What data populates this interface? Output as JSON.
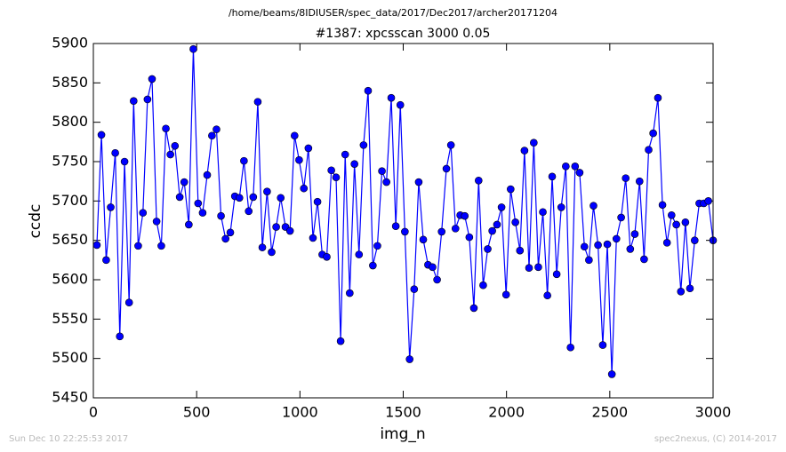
{
  "chart_data": {
    "type": "line",
    "suptitle": "/home/beams/8IDIUSER/spec_data/2017/Dec2017/archer20171204",
    "title": "#1387: xpcsscan 3000 0.05",
    "x_label": "img_n",
    "y_label": "ccdc",
    "footer_left": "Sun Dec 10 22:25:53 2017",
    "footer_right": "spec2nexus, (C) 2014-2017",
    "x": [
      17,
      39,
      62,
      84,
      106,
      128,
      151,
      173,
      195,
      217,
      240,
      262,
      284,
      306,
      329,
      351,
      373,
      395,
      418,
      440,
      462,
      484,
      507,
      529,
      551,
      574,
      596,
      618,
      640,
      663,
      685,
      707,
      729,
      752,
      774,
      796,
      818,
      841,
      863,
      885,
      907,
      930,
      952,
      974,
      996,
      1019,
      1041,
      1063,
      1085,
      1108,
      1130,
      1152,
      1175,
      1197,
      1219,
      1241,
      1264,
      1286,
      1308,
      1330,
      1353,
      1375,
      1397,
      1419,
      1442,
      1464,
      1486,
      1508,
      1531,
      1553,
      1575,
      1597,
      1620,
      1642,
      1664,
      1686,
      1709,
      1731,
      1753,
      1776,
      1798,
      1820,
      1842,
      1865,
      1887,
      1909,
      1931,
      1954,
      1976,
      1998,
      2020,
      2043,
      2065,
      2087,
      2109,
      2132,
      2154,
      2176,
      2198,
      2221,
      2243,
      2265,
      2287,
      2310,
      2332,
      2354,
      2377,
      2399,
      2421,
      2443,
      2466,
      2488,
      2510,
      2532,
      2555,
      2577,
      2599,
      2621,
      2644,
      2666,
      2688,
      2710,
      2733,
      2755,
      2777,
      2799,
      2822,
      2844,
      2866,
      2888,
      2911,
      2933,
      2955,
      2977,
      3000
    ],
    "series": [
      {
        "color": "#0000ff",
        "marker_color": "#0000ff",
        "values": [
          5644,
          5784,
          5625,
          5692,
          5761,
          5528,
          5750,
          5571,
          5827,
          5643,
          5685,
          5829,
          5855,
          5674,
          5643,
          5792,
          5759,
          5770,
          5705,
          5724,
          5670,
          5893,
          5697,
          5685,
          5733,
          5783,
          5791,
          5681,
          5652,
          5660,
          5706,
          5704,
          5751,
          5687,
          5705,
          5826,
          5641,
          5712,
          5635,
          5667,
          5704,
          5667,
          5662,
          5783,
          5752,
          5716,
          5767,
          5653,
          5699,
          5632,
          5629,
          5739,
          5730,
          5522,
          5759,
          5583,
          5747,
          5632,
          5771,
          5840,
          5618,
          5643,
          5738,
          5724,
          5831,
          5668,
          5822,
          5661,
          5499,
          5588,
          5724,
          5651,
          5619,
          5616,
          5600,
          5661,
          5741,
          5771,
          5665,
          5682,
          5681,
          5654,
          5564,
          5726,
          5593,
          5639,
          5662,
          5670,
          5692,
          5581,
          5715,
          5673,
          5637,
          5764,
          5615,
          5774,
          5616,
          5686,
          5580,
          5731,
          5607,
          5692,
          5744,
          5514,
          5744,
          5736,
          5642,
          5625,
          5694,
          5644,
          5517,
          5645,
          5480,
          5652,
          5679,
          5729,
          5639,
          5658,
          5725,
          5626,
          5765,
          5786,
          5831,
          5695,
          5647,
          5682,
          5670,
          5585,
          5673,
          5589,
          5650,
          5697,
          5697,
          5700,
          5650
        ]
      }
    ],
    "xlim": [
      0,
      3000
    ],
    "xticks": [
      0,
      500,
      1000,
      1500,
      2000,
      2500,
      3000
    ],
    "ylim": [
      5450,
      5900
    ],
    "yticks": [
      5450,
      5500,
      5550,
      5600,
      5650,
      5700,
      5750,
      5800,
      5850,
      5900
    ],
    "grid": false
  }
}
